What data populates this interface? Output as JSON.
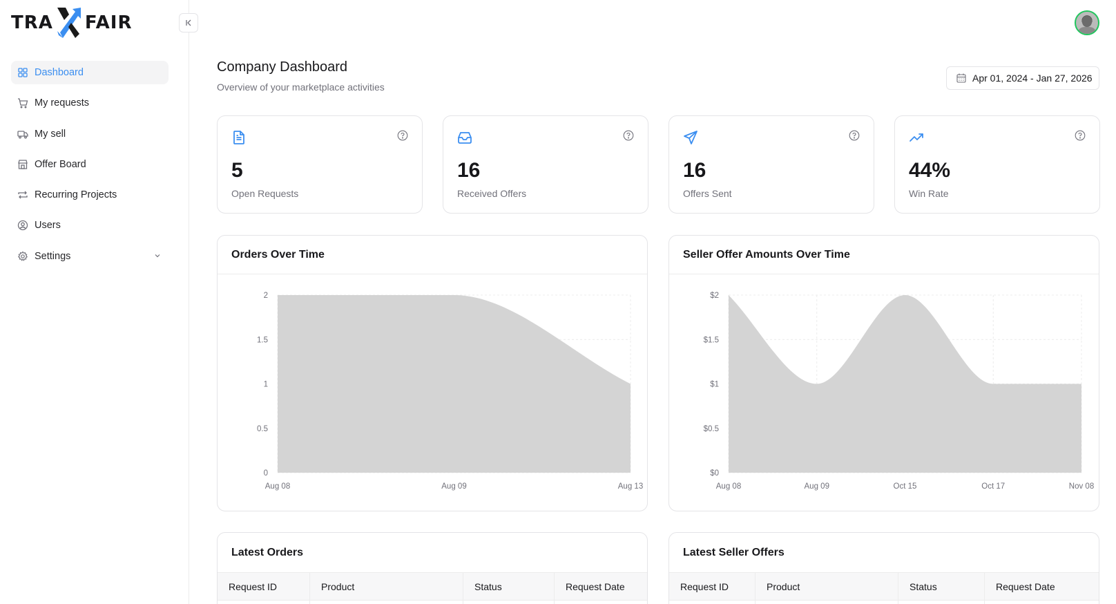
{
  "brand": {
    "left": "TRA",
    "right": "FAIR",
    "accent": "#3b8ef0"
  },
  "sidebar": {
    "collapse_label": "collapse-sidebar",
    "items": [
      {
        "label": "Dashboard",
        "icon": "grid-icon",
        "active": true
      },
      {
        "label": "My requests",
        "icon": "cart-icon"
      },
      {
        "label": "My sell",
        "icon": "truck-icon"
      },
      {
        "label": "Offer Board",
        "icon": "store-icon"
      },
      {
        "label": "Recurring Projects",
        "icon": "repeat-icon"
      },
      {
        "label": "Users",
        "icon": "user-circle-icon"
      },
      {
        "label": "Settings",
        "icon": "gear-icon",
        "expandable": true
      }
    ]
  },
  "header": {
    "title": "Company Dashboard",
    "subtitle": "Overview of your marketplace activities",
    "date_range": "Apr 01, 2024 - Jan 27, 2026"
  },
  "stats": [
    {
      "value": "5",
      "label": "Open Requests",
      "icon": "document-icon"
    },
    {
      "value": "16",
      "label": "Received Offers",
      "icon": "inbox-icon"
    },
    {
      "value": "16",
      "label": "Offers Sent",
      "icon": "send-icon"
    },
    {
      "value": "44%",
      "label": "Win Rate",
      "icon": "trending-up-icon"
    }
  ],
  "charts": {
    "orders": {
      "title": "Orders Over Time"
    },
    "seller": {
      "title": "Seller Offer Amounts Over Time"
    }
  },
  "chart_data": [
    {
      "type": "area",
      "title": "Orders Over Time",
      "categories": [
        "Aug 08",
        "Aug 09",
        "Aug 13"
      ],
      "values": [
        2,
        2,
        1
      ],
      "yticks": [
        "0",
        "0.5",
        "1",
        "1.5",
        "2"
      ],
      "ylim": [
        0,
        2
      ],
      "grid": true,
      "fill": "#d4d4d4"
    },
    {
      "type": "area",
      "title": "Seller Offer Amounts Over Time",
      "categories": [
        "Aug 08",
        "Aug 09",
        "Oct 15",
        "Oct 17",
        "Nov 08"
      ],
      "values": [
        2,
        1,
        2,
        1,
        1
      ],
      "yticks": [
        "$0",
        "$0.5",
        "$1",
        "$1.5",
        "$2"
      ],
      "ylim": [
        0,
        2
      ],
      "grid": true,
      "fill": "#d4d4d4"
    }
  ],
  "tables": {
    "orders": {
      "title": "Latest Orders",
      "columns": [
        "Request ID",
        "Product",
        "Status",
        "Request Date"
      ]
    },
    "seller": {
      "title": "Latest Seller Offers",
      "columns": [
        "Request ID",
        "Product",
        "Status",
        "Request Date"
      ]
    }
  }
}
